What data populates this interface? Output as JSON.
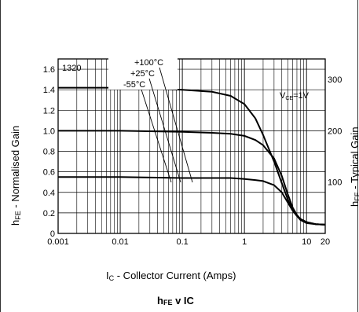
{
  "chart_data": {
    "type": "line",
    "tag": "1320",
    "condition": "V",
    "condition_sub": "CE",
    "condition_tail": "=1V",
    "x_scale": "log",
    "xlim": [
      0.001,
      20
    ],
    "ylim": [
      0,
      1.7
    ],
    "y2lim": [
      0,
      340
    ],
    "grid": true,
    "x_ticks": [
      {
        "value": 0.001,
        "label": "0.001"
      },
      {
        "value": 0.01,
        "label": "0.01"
      },
      {
        "value": 0.1,
        "label": "0.1"
      },
      {
        "value": 1,
        "label": "1"
      },
      {
        "value": 10,
        "label": "10"
      },
      {
        "value": 20,
        "label": "20"
      }
    ],
    "y_ticks": [
      {
        "value": 0,
        "label": "0"
      },
      {
        "value": 0.2,
        "label": "0.2"
      },
      {
        "value": 0.4,
        "label": "0.4"
      },
      {
        "value": 0.6,
        "label": "0.6"
      },
      {
        "value": 0.8,
        "label": "0.8"
      },
      {
        "value": 1.0,
        "label": "1.0"
      },
      {
        "value": 1.2,
        "label": "1.2"
      },
      {
        "value": 1.4,
        "label": "1.4"
      },
      {
        "value": 1.6,
        "label": "1.6"
      }
    ],
    "y2_ticks": [
      {
        "value": 100,
        "label": "100"
      },
      {
        "value": 200,
        "label": "200"
      },
      {
        "value": 300,
        "label": "300"
      }
    ],
    "xlabel_prefix": "I",
    "xlabel_sub": "C",
    "xlabel_text": " - Collector Current (Amps)",
    "ylabel_prefix": "h",
    "ylabel_sub": "FE",
    "ylabel_text": " - Normalised Gain",
    "y2label_prefix": "h",
    "y2label_sub": "FE",
    "y2label_text": " - Typical Gain",
    "caption_a": "h",
    "caption_a_sub": "FE",
    "caption_mid": " v I",
    "caption_b_sub": "C",
    "series": [
      {
        "name": "+100°C",
        "x": [
          0.001,
          0.01,
          0.1,
          0.3,
          0.6,
          1,
          1.5,
          2,
          3,
          4,
          5,
          6,
          7,
          8,
          10,
          14,
          20
        ],
        "y": [
          1.42,
          1.42,
          1.4,
          1.38,
          1.34,
          1.26,
          1.12,
          0.96,
          0.7,
          0.49,
          0.33,
          0.23,
          0.17,
          0.13,
          0.1,
          0.09,
          0.085
        ]
      },
      {
        "name": "+25°C",
        "x": [
          0.001,
          0.01,
          0.1,
          0.3,
          0.6,
          1,
          1.5,
          2,
          3,
          4,
          5,
          6,
          7,
          8,
          10,
          14,
          20
        ],
        "y": [
          1.0,
          1.0,
          0.99,
          0.98,
          0.97,
          0.95,
          0.91,
          0.86,
          0.73,
          0.56,
          0.38,
          0.25,
          0.18,
          0.14,
          0.11,
          0.09,
          0.085
        ]
      },
      {
        "name": "-55°C",
        "x": [
          0.001,
          0.01,
          0.1,
          0.3,
          0.6,
          1,
          1.5,
          2,
          3,
          4,
          5,
          6,
          7,
          8,
          10,
          14,
          20
        ],
        "y": [
          0.55,
          0.55,
          0.54,
          0.54,
          0.54,
          0.53,
          0.52,
          0.51,
          0.47,
          0.4,
          0.3,
          0.22,
          0.17,
          0.14,
          0.11,
          0.09,
          0.085
        ]
      }
    ]
  }
}
